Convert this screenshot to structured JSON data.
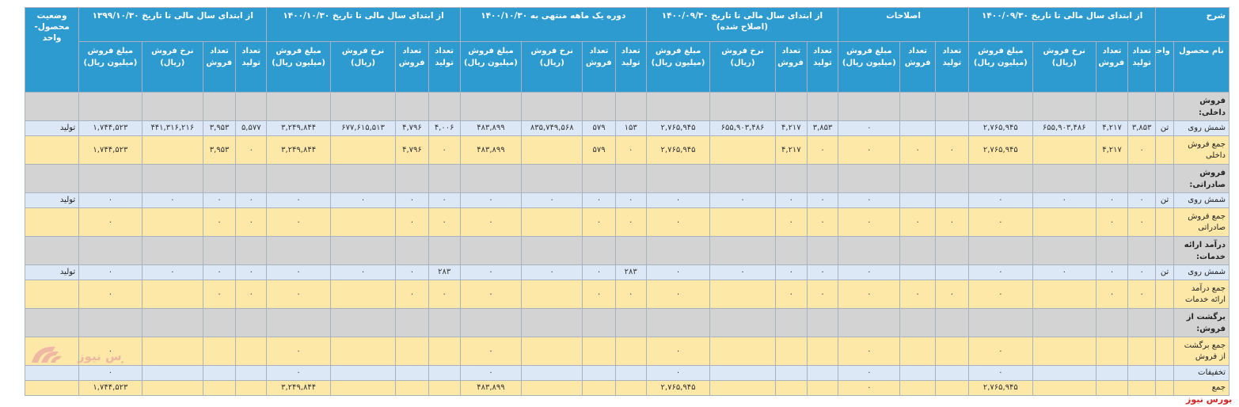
{
  "header": {
    "groups": [
      "شرح",
      "از ابتدای سال مالی تا تاریخ ۱۴۰۰/۰۹/۳۰",
      "اصلاحات",
      "از ابتدای سال مالی تا تاریخ ۱۴۰۰/۰۹/۳۰ (اصلاح شده)",
      "دوره یک ماهه منتهی به ۱۴۰۰/۱۰/۳۰",
      "از ابتدای سال مالی تا تاریخ ۱۴۰۰/۱۰/۳۰",
      "از ابتدای سال مالی تا تاریخ ۱۳۹۹/۱۰/۳۰",
      "وضعیت محصول- واحد"
    ],
    "sub": [
      "نام محصول",
      "واحد",
      "تعداد تولید",
      "تعداد فروش",
      "نرخ فروش (ریال)",
      "مبلغ فروش (میلیون ریال)",
      "تعداد تولید",
      "تعداد فروش",
      "مبلغ فروش (میلیون ریال)",
      "تعداد تولید",
      "تعداد فروش",
      "نرخ فروش (ریال)",
      "مبلغ فروش (میلیون ریال)",
      "تعداد تولید",
      "تعداد فروش",
      "نرخ فروش (ریال)",
      "مبلغ فروش (میلیون ریال)",
      "تعداد تولید",
      "تعداد فروش",
      "نرخ فروش (ریال)",
      "مبلغ فروش (میلیون ریال)",
      "تعداد تولید",
      "تعداد فروش",
      "نرخ فروش (ریال)",
      "مبلغ فروش (میلیون ریال)"
    ]
  },
  "rows": [
    {
      "type": "sec",
      "cells": [
        "فروش داخلی:",
        "",
        "",
        "",
        "",
        "",
        "",
        "",
        "",
        "",
        "",
        "",
        "",
        "",
        "",
        "",
        "",
        "",
        "",
        "",
        "",
        "",
        "",
        "",
        "",
        ""
      ]
    },
    {
      "type": "blue",
      "cells": [
        "شمش روی",
        "تن",
        "۳,۸۵۳",
        "۴,۲۱۷",
        "۶۵۵,۹۰۳,۴۸۶",
        "۲,۷۶۵,۹۴۵",
        "",
        "",
        "۰",
        "۳,۸۵۳",
        "۴,۲۱۷",
        "۶۵۵,۹۰۳,۴۸۶",
        "۲,۷۶۵,۹۴۵",
        "۱۵۳",
        "۵۷۹",
        "۸۳۵,۷۴۹,۵۶۸",
        "۴۸۳,۸۹۹",
        "۴,۰۰۶",
        "۴,۷۹۶",
        "۶۷۷,۶۱۵,۵۱۳",
        "۳,۲۴۹,۸۴۴",
        "۵,۵۷۷",
        "۳,۹۵۳",
        "۴۴۱,۳۱۶,۲۱۶",
        "۱,۷۴۴,۵۲۳",
        "تولید"
      ]
    },
    {
      "type": "tan",
      "cells": [
        "جمع فروش داخلی",
        "",
        "۰",
        "۴,۲۱۷",
        "",
        "۲,۷۶۵,۹۴۵",
        "۰",
        "۰",
        "۰",
        "۰",
        "۴,۲۱۷",
        "",
        "۲,۷۶۵,۹۴۵",
        "۰",
        "۵۷۹",
        "",
        "۴۸۳,۸۹۹",
        "۰",
        "۴,۷۹۶",
        "",
        "۳,۲۴۹,۸۴۴",
        "۰",
        "۳,۹۵۳",
        "",
        "۱,۷۴۴,۵۲۳",
        ""
      ]
    },
    {
      "type": "sec",
      "cells": [
        "فروش صادراتی:",
        "",
        "",
        "",
        "",
        "",
        "",
        "",
        "",
        "",
        "",
        "",
        "",
        "",
        "",
        "",
        "",
        "",
        "",
        "",
        "",
        "",
        "",
        "",
        "",
        ""
      ]
    },
    {
      "type": "blue",
      "cells": [
        "شمش روی",
        "تن",
        "۰",
        "۰",
        "۰",
        "۰",
        "",
        "",
        "۰",
        "۰",
        "۰",
        "۰",
        "۰",
        "۰",
        "۰",
        "۰",
        "۰",
        "۰",
        "۰",
        "۰",
        "۰",
        "۰",
        "۰",
        "۰",
        "۰",
        "تولید"
      ]
    },
    {
      "type": "tan",
      "cells": [
        "جمع فروش صادراتی",
        "",
        "۰",
        "۰",
        "",
        "۰",
        "۰",
        "۰",
        "۰",
        "۰",
        "۰",
        "",
        "۰",
        "۰",
        "۰",
        "",
        "۰",
        "۰",
        "۰",
        "",
        "۰",
        "۰",
        "۰",
        "",
        "۰",
        ""
      ]
    },
    {
      "type": "sec",
      "cells": [
        "درآمد ارائه خدمات:",
        "",
        "",
        "",
        "",
        "",
        "",
        "",
        "",
        "",
        "",
        "",
        "",
        "",
        "",
        "",
        "",
        "",
        "",
        "",
        "",
        "",
        "",
        "",
        "",
        ""
      ]
    },
    {
      "type": "blue",
      "cells": [
        "شمش روی",
        "تن",
        "۰",
        "۰",
        "۰",
        "۰",
        "",
        "",
        "۰",
        "۰",
        "۰",
        "۰",
        "۰",
        "۲۸۳",
        "۰",
        "۰",
        "۰",
        "۲۸۳",
        "۰",
        "۰",
        "۰",
        "۰",
        "۰",
        "۰",
        "۰",
        "تولید"
      ]
    },
    {
      "type": "tan",
      "cells": [
        "جمع درآمد ارائه خدمات",
        "",
        "۰",
        "۰",
        "",
        "۰",
        "۰",
        "۰",
        "۰",
        "۰",
        "۰",
        "",
        "۰",
        "۰",
        "۰",
        "",
        "۰",
        "۰",
        "۰",
        "",
        "۰",
        "۰",
        "۰",
        "",
        "۰",
        ""
      ]
    },
    {
      "type": "sec",
      "cells": [
        "برگشت از فروش:",
        "",
        "",
        "",
        "",
        "",
        "",
        "",
        "",
        "",
        "",
        "",
        "",
        "",
        "",
        "",
        "",
        "",
        "",
        "",
        "",
        "",
        "",
        "",
        "",
        ""
      ]
    },
    {
      "type": "tan",
      "cells": [
        "جمع برگشت از فروش",
        "",
        "",
        "",
        "",
        "۰",
        "",
        "",
        "۰",
        "",
        "",
        "",
        "۰",
        "",
        "",
        "",
        "۰",
        "",
        "",
        "",
        "۰",
        "",
        "",
        "",
        "۰",
        ""
      ]
    },
    {
      "type": "blue",
      "cells": [
        "تخفیفات",
        "",
        "",
        "",
        "",
        "۰",
        "",
        "",
        "۰",
        "",
        "",
        "",
        "۰",
        "",
        "",
        "",
        "۰",
        "",
        "",
        "",
        "۰",
        "",
        "",
        "",
        "۰",
        ""
      ]
    },
    {
      "type": "tan",
      "cells": [
        "جمع",
        "",
        "",
        "",
        "",
        "۲,۷۶۵,۹۴۵",
        "",
        "",
        "۰",
        "",
        "",
        "",
        "۲,۷۶۵,۹۴۵",
        "",
        "",
        "",
        "۴۸۳,۸۹۹",
        "",
        "",
        "",
        "۳,۲۴۹,۸۴۴",
        "",
        "",
        "",
        "۱,۷۴۴,۵۲۳",
        ""
      ]
    }
  ],
  "brand": "بورس نیوز",
  "colors": {
    "header": "#2e9bd0",
    "section": "#d3d3d3",
    "blue_row": "#dde8f6",
    "tan_row": "#fde8a8",
    "brand": "#d32626"
  }
}
